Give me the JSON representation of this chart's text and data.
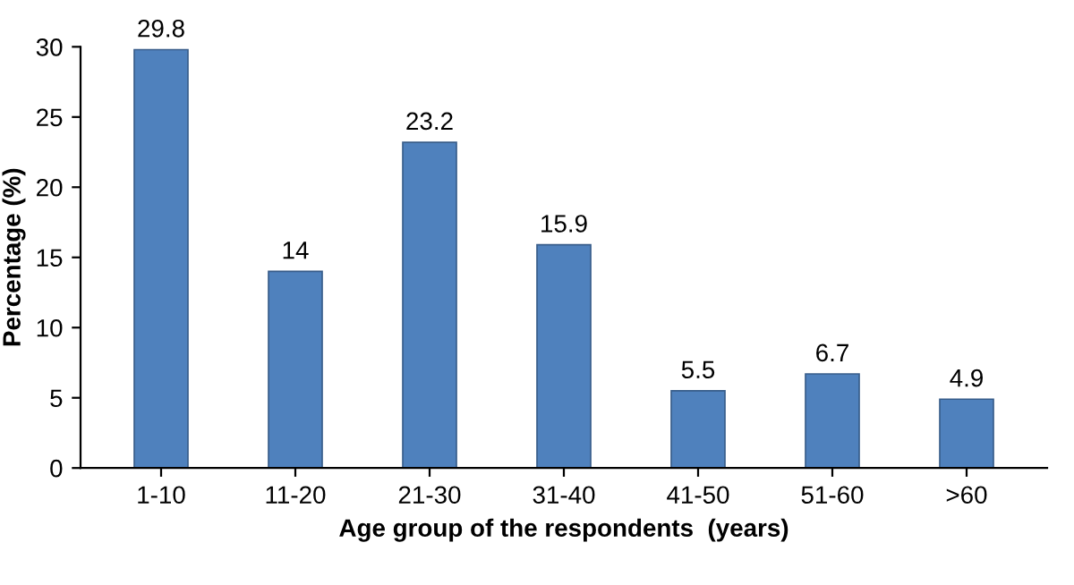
{
  "chart_data": {
    "type": "bar",
    "xlabel": "Age group of the respondents  (years)",
    "ylabel": "Percentage (%)",
    "categories": [
      "1-10",
      "11-20",
      "21-30",
      "31-40",
      "41-50",
      "51-60",
      ">60"
    ],
    "values": [
      29.8,
      14,
      23.2,
      15.9,
      5.5,
      6.7,
      4.9
    ],
    "color": "#4f81bd",
    "ylim": [
      0,
      30
    ],
    "yticks": [
      0,
      5,
      10,
      15,
      20,
      25,
      30
    ],
    "data_labels": true,
    "grid": false,
    "legend": false
  }
}
